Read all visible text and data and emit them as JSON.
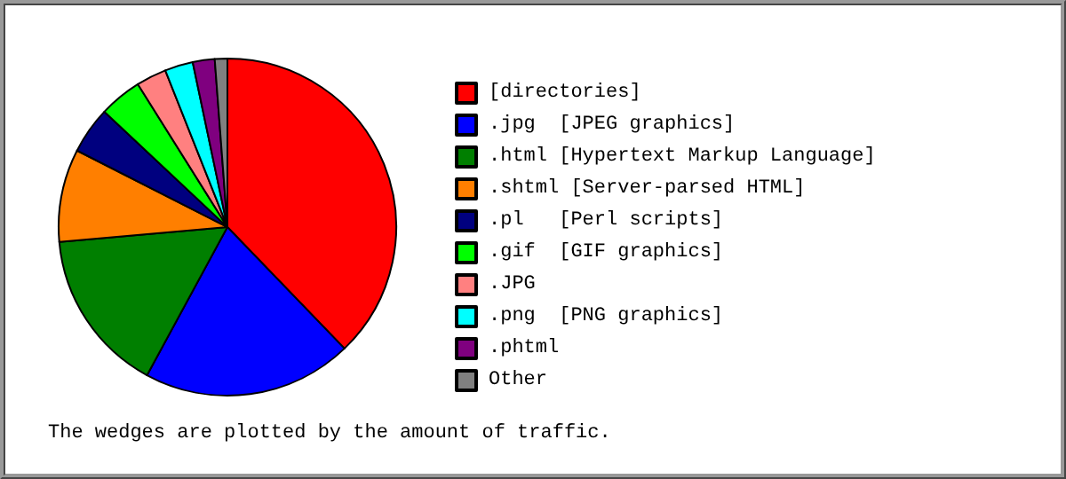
{
  "chart_data": {
    "type": "pie",
    "categories": [
      "[directories]",
      ".jpg  [JPEG graphics]",
      ".html [Hypertext Markup Language]",
      ".shtml [Server-parsed HTML]",
      ".pl   [Perl scripts]",
      ".gif  [GIF graphics]",
      ".JPG",
      ".png  [PNG graphics]",
      ".phtml",
      "Other"
    ],
    "values": [
      37.8,
      20.1,
      15.7,
      8.9,
      4.5,
      4.1,
      2.9,
      2.7,
      2.1,
      1.2
    ],
    "colors": [
      "#ff0000",
      "#0000ff",
      "#007f00",
      "#ff7f00",
      "#00007f",
      "#00ff00",
      "#ff8080",
      "#00ffff",
      "#7f007f",
      "#808080"
    ],
    "legend": "right",
    "annotations": [
      "The wedges are plotted by the amount of traffic."
    ]
  }
}
